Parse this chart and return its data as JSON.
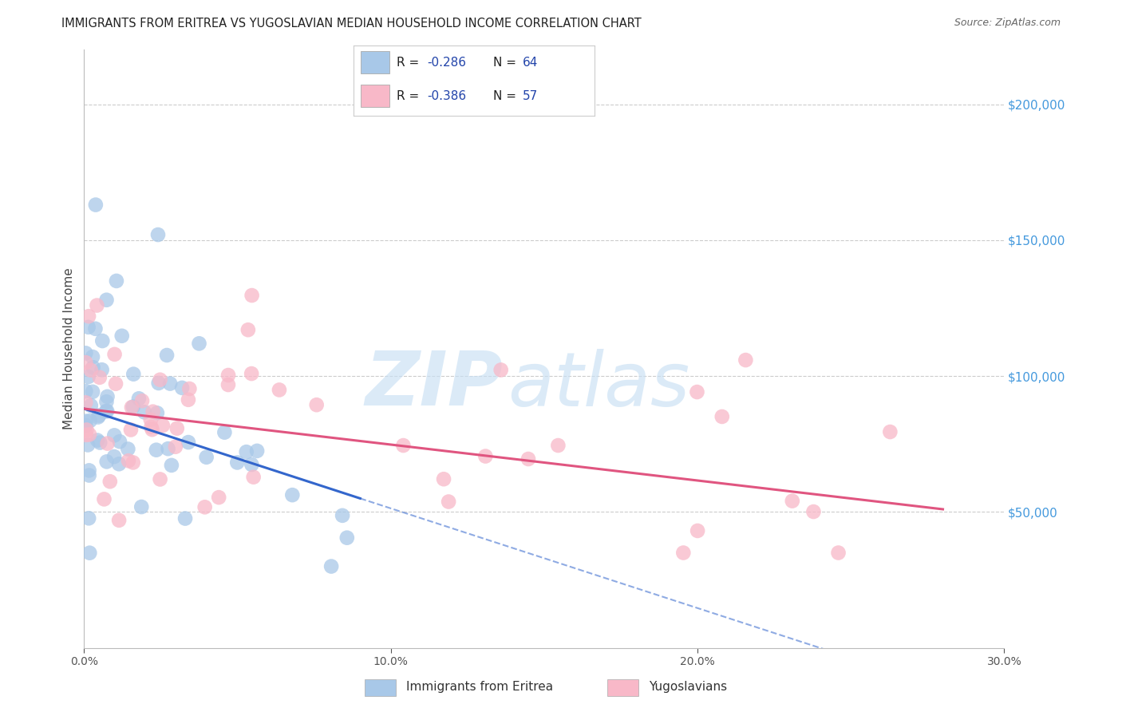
{
  "title": "IMMIGRANTS FROM ERITREA VS YUGOSLAVIAN MEDIAN HOUSEHOLD INCOME CORRELATION CHART",
  "source": "Source: ZipAtlas.com",
  "xlabel_ticks": [
    "0.0%",
    "10.0%",
    "20.0%",
    "30.0%"
  ],
  "xlabel_tick_vals": [
    0.0,
    10.0,
    20.0,
    30.0
  ],
  "ylabel_ticks": [
    50000,
    100000,
    150000,
    200000
  ],
  "ylabel_tick_labels": [
    "$50,000",
    "$100,000",
    "$150,000",
    "$200,000"
  ],
  "xlim": [
    0,
    30
  ],
  "ylim": [
    0,
    220000
  ],
  "series1_label": "Immigrants from Eritrea",
  "series1_R": "-0.286",
  "series1_N": "64",
  "series1_color": "#a8c8e8",
  "series1_line_color": "#3366cc",
  "series2_label": "Yugoslavians",
  "series2_R": "-0.386",
  "series2_N": "57",
  "series2_color": "#f8b8c8",
  "series2_line_color": "#e05580",
  "watermark_zip": "ZIP",
  "watermark_atlas": "atlas",
  "background_color": "#ffffff",
  "title_fontsize": 10.5,
  "source_fontsize": 9,
  "ylabel_label": "Median Household Income",
  "ytick_color": "#4499dd",
  "legend_R_label_color": "#333333",
  "legend_value_color": "#2244aa",
  "grid_color": "#cccccc"
}
